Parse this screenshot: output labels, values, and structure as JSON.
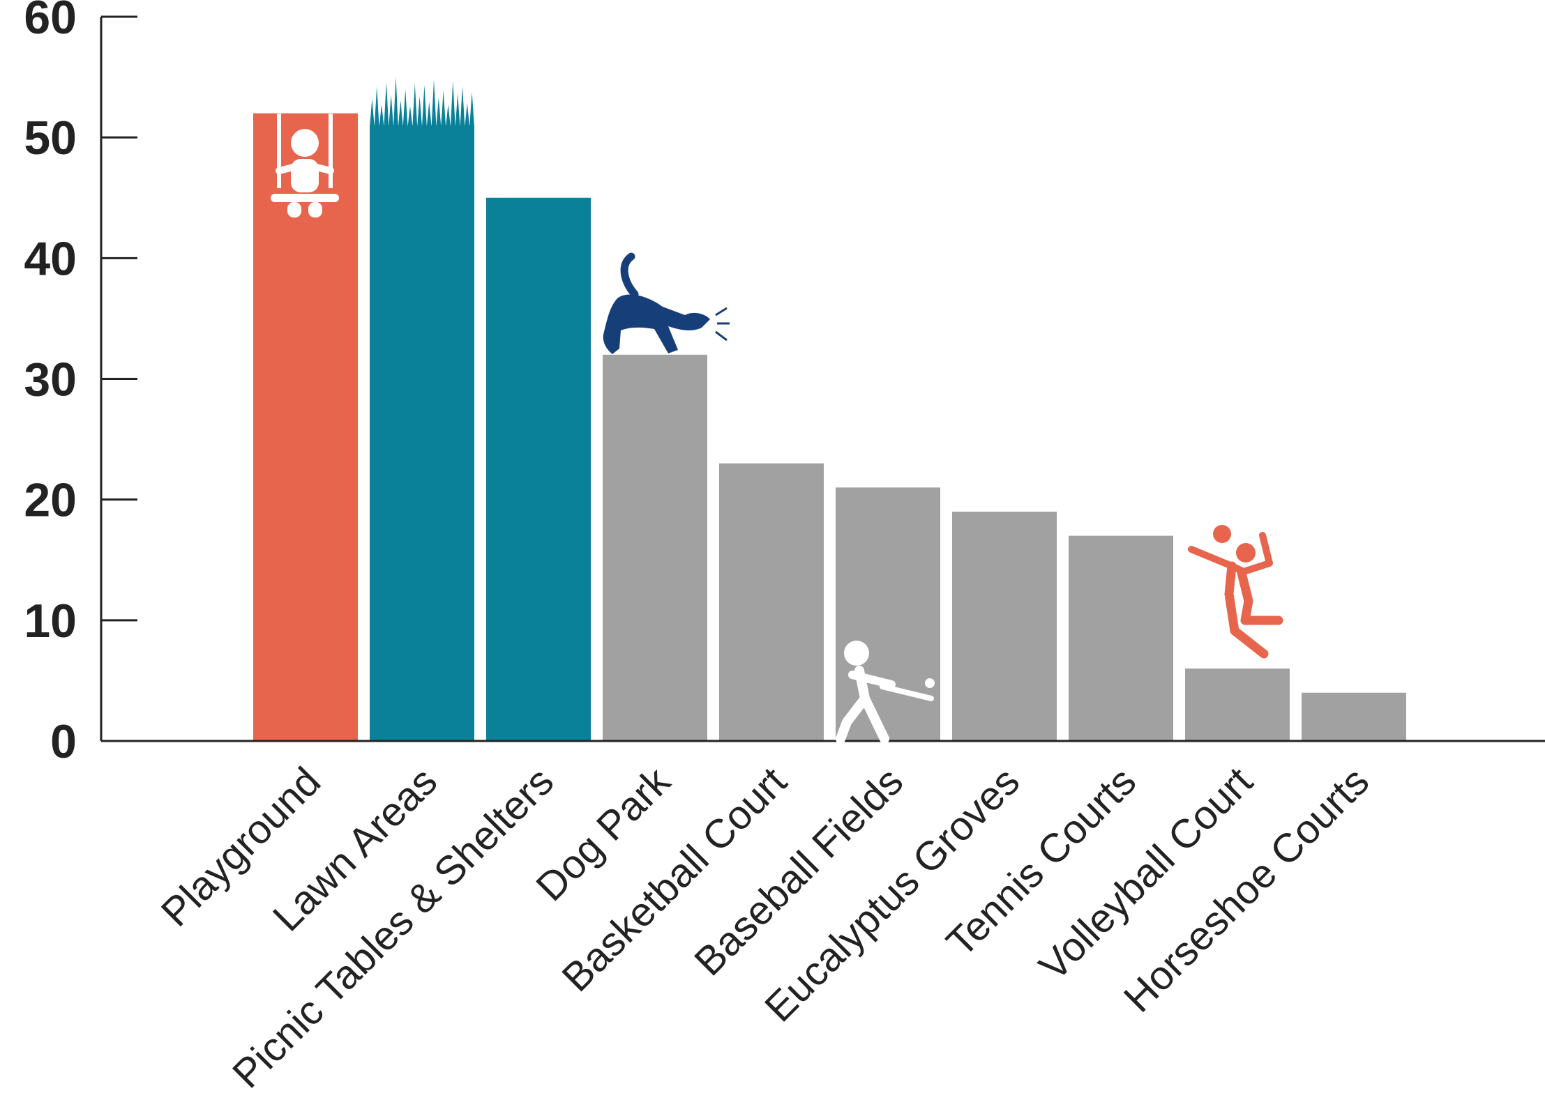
{
  "chart_data": {
    "type": "bar",
    "title": "",
    "xlabel": "",
    "ylabel": "",
    "ylim": [
      0,
      60
    ],
    "yticks": [
      0,
      10,
      20,
      30,
      40,
      50,
      60
    ],
    "grid": false,
    "legend": "none",
    "categories": [
      "Playground",
      "Lawn Areas",
      "Picnic Tables & Shelters",
      "Dog Park",
      "Basketball Court",
      "Baseball Fields",
      "Eucalyptus Groves",
      "Tennis Courts",
      "Volleyball Court",
      "Horseshoe Courts"
    ],
    "values": [
      52,
      51,
      45,
      32,
      23,
      21,
      19,
      17,
      6,
      4
    ],
    "bar_colors": [
      "#E8654D",
      "#0B8199",
      "#0B8199",
      "#A1A1A1",
      "#A1A1A1",
      "#A1A1A1",
      "#A1A1A1",
      "#A1A1A1",
      "#A1A1A1",
      "#A1A1A1"
    ],
    "icons": [
      {
        "category": "Playground",
        "name": "swing-icon",
        "color": "#FFFFFF"
      },
      {
        "category": "Lawn Areas",
        "name": "grass-icon",
        "color": "#0B8199"
      },
      {
        "category": "Dog Park",
        "name": "dog-icon",
        "color": "#163F7A"
      },
      {
        "category": "Baseball Fields",
        "name": "batter-icon",
        "color": "#FFFFFF"
      },
      {
        "category": "Volleyball Court",
        "name": "volleyball-player-icon",
        "color": "#E8654D"
      }
    ]
  }
}
